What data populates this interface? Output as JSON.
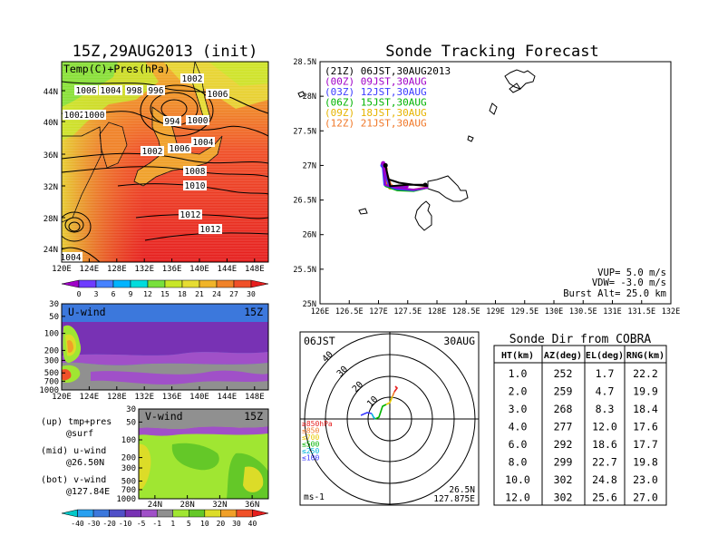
{
  "left_title": "15Z,29AUG2013 (init)",
  "right_title": "Sonde Tracking Forecast",
  "tp_panel": {
    "label": "Temp(C)+Pres(hPa)",
    "isobar_labels": [
      "1006",
      "1004",
      "998",
      "996",
      "1002",
      "1006",
      "1002",
      "1000",
      "994",
      "1000",
      "1004",
      "1002",
      "1006",
      "1008",
      "1010",
      "1012",
      "1012",
      "1004"
    ],
    "lon_ticks": [
      "120E",
      "124E",
      "128E",
      "132E",
      "136E",
      "140E",
      "144E",
      "148E"
    ],
    "lat_ticks": [
      "24N",
      "28N",
      "32N",
      "36N",
      "40N",
      "44N"
    ]
  },
  "temp_colorbar": {
    "labels": [
      "0",
      "3",
      "6",
      "9",
      "12",
      "15",
      "18",
      "21",
      "24",
      "27",
      "30"
    ],
    "colors": [
      "#a000c8",
      "#6e3cff",
      "#4682ff",
      "#00b4ff",
      "#00dcdc",
      "#78e03c",
      "#c8e628",
      "#e6dc32",
      "#f0b428",
      "#f08228",
      "#f05028",
      "#e61e1e"
    ]
  },
  "uwind_panel": {
    "label": "U-wind",
    "time": "15Z",
    "p_ticks": [
      "30",
      "50",
      "100",
      "200",
      "300",
      "500",
      "700",
      "1000"
    ],
    "lon_ticks": [
      "120E",
      "124E",
      "128E",
      "132E",
      "136E",
      "140E",
      "144E",
      "148E"
    ]
  },
  "vwind_panel": {
    "label": "V-wind",
    "time": "15Z",
    "p_ticks": [
      "30",
      "50",
      "100",
      "200",
      "300",
      "500",
      "700",
      "1000"
    ],
    "lat_ticks": [
      "24N",
      "28N",
      "32N",
      "36N"
    ]
  },
  "notes": [
    {
      "line1": "(up) tmp+pres",
      "line2": "@surf"
    },
    {
      "line1": "(mid) u-wind",
      "line2": "@26.50N"
    },
    {
      "line1": "(bot) v-wind",
      "line2": "@127.84E"
    }
  ],
  "wind_colorbar": {
    "labels": [
      "-40",
      "-30",
      "-20",
      "-10",
      "-5",
      "-1",
      "1",
      "5",
      "10",
      "20",
      "30",
      "40"
    ],
    "colors": [
      "#00c8c8",
      "#28a0f0",
      "#3c78dc",
      "#5050c8",
      "#7832b4",
      "#a050c8",
      "#909090",
      "#a0e632",
      "#64c828",
      "#dcdc28",
      "#f0a028",
      "#f05028",
      "#e61e1e"
    ]
  },
  "track_map": {
    "legend": [
      {
        "text": "(21Z) 06JST,30AUG2013",
        "color": "#000000"
      },
      {
        "text": "(00Z) 09JST,30AUG",
        "color": "#a000c8"
      },
      {
        "text": "(03Z) 12JST,30AUG",
        "color": "#3c3cff"
      },
      {
        "text": "(06Z) 15JST,30AUG",
        "color": "#00b400"
      },
      {
        "text": "(09Z) 18JST,30AUG",
        "color": "#e6b400"
      },
      {
        "text": "(12Z) 21JST,30AUG",
        "color": "#f07828"
      }
    ],
    "xticks": [
      "126E",
      "126.5E",
      "127E",
      "127.5E",
      "128E",
      "128.5E",
      "129E",
      "129.5E",
      "130E",
      "130.5E",
      "131E",
      "131.5E",
      "132E"
    ],
    "yticks": [
      "25N",
      "25.5N",
      "26N",
      "26.5N",
      "27N",
      "27.5N",
      "28N",
      "28.5N"
    ],
    "params": [
      "VUP= 5.0 m/s",
      "VDW= -3.0 m/s",
      "Burst Alt= 25.0 km"
    ]
  },
  "polar": {
    "label_left": "06JST",
    "label_right": "30AUG",
    "ring_labels": [
      "10",
      "20",
      "30",
      "40"
    ],
    "levels": [
      {
        "text": "≥850hPa",
        "color": "#e61e1e"
      },
      {
        "text": "≤850",
        "color": "#f07828"
      },
      {
        "text": "≤700",
        "color": "#e6c800"
      },
      {
        "text": "≤500",
        "color": "#00b400"
      },
      {
        "text": "≤250",
        "color": "#00b4dc"
      },
      {
        "text": "≤100",
        "color": "#3c3cff"
      }
    ],
    "unit": "ms-1",
    "lat": "26.5N",
    "lon": "127.875E"
  },
  "sonde_table": {
    "title": "Sonde Dir from COBRA",
    "headers": [
      "HT(km)",
      "AZ(deg)",
      "EL(deg)",
      "RNG(km)"
    ],
    "rows": [
      [
        "1.0",
        "252",
        "1.7",
        "22.2"
      ],
      [
        "2.0",
        "259",
        "4.7",
        "19.9"
      ],
      [
        "3.0",
        "268",
        "8.3",
        "18.4"
      ],
      [
        "4.0",
        "277",
        "12.0",
        "17.6"
      ],
      [
        "6.0",
        "292",
        "18.6",
        "17.7"
      ],
      [
        "8.0",
        "299",
        "22.7",
        "19.8"
      ],
      [
        "10.0",
        "302",
        "24.8",
        "23.0"
      ],
      [
        "12.0",
        "302",
        "25.6",
        "27.0"
      ]
    ]
  },
  "chart_data": [
    {
      "type": "heatmap",
      "title": "15Z,29AUG2013 (init)",
      "label": "Temp(C)+Pres(hPa)",
      "xlim": [
        120,
        150
      ],
      "ylim": [
        22,
        48
      ],
      "colorbar": [
        0,
        3,
        6,
        9,
        12,
        15,
        18,
        21,
        24,
        27,
        30
      ]
    },
    {
      "type": "heatmap",
      "label": "U-wind",
      "xlim": [
        120,
        150
      ],
      "y_pressure": [
        1000,
        30
      ],
      "colorbar": [
        -40,
        -30,
        -20,
        -10,
        -5,
        -1,
        1,
        5,
        10,
        20,
        30,
        40
      ]
    },
    {
      "type": "heatmap",
      "label": "V-wind",
      "xlim": [
        22,
        38
      ],
      "y_pressure": [
        1000,
        30
      ]
    },
    {
      "type": "line",
      "title": "Sonde Tracking Forecast",
      "xlim": [
        126,
        132
      ],
      "ylim": [
        25,
        28.5
      ],
      "series": [
        {
          "name": "(21Z) 06JST,30AUG2013",
          "x": [
            127.85,
            127.6,
            127.35,
            127.17,
            127.12,
            127.2,
            127.5,
            127.8
          ],
          "y": [
            26.7,
            26.72,
            26.75,
            26.8,
            27.0,
            26.7,
            26.72,
            26.72
          ]
        },
        {
          "name": "(00Z) 09JST,30AUG",
          "x": [
            127.85,
            127.6,
            127.3,
            127.12,
            127.08,
            127.2,
            127.48
          ],
          "y": [
            26.68,
            26.65,
            26.68,
            26.72,
            27.03,
            26.7,
            26.7
          ]
        },
        {
          "name": "(03Z) 12JST,30AUG",
          "x": [
            127.85,
            127.6,
            127.3,
            127.1,
            127.07,
            127.18,
            127.45
          ],
          "y": [
            26.68,
            26.64,
            26.66,
            26.72,
            27.0,
            26.7,
            26.7
          ]
        },
        {
          "name": "(06Z) 15JST,30AUG",
          "x": [
            127.85,
            127.6,
            127.32,
            127.12,
            127.09,
            127.2,
            127.45
          ],
          "y": [
            26.68,
            26.63,
            26.64,
            26.7,
            26.98,
            26.68,
            26.68
          ]
        },
        {
          "name": "(09Z) 18JST,30AUG",
          "x": [
            127.85,
            127.6,
            127.33,
            127.13,
            127.1,
            127.2
          ],
          "y": [
            26.68,
            26.64,
            26.65,
            26.7,
            26.96,
            26.68
          ]
        },
        {
          "name": "(12Z) 21JST,30AUG",
          "x": [
            127.85,
            127.6,
            127.35,
            127.15,
            127.12,
            127.22
          ],
          "y": [
            26.69,
            26.65,
            26.66,
            26.71,
            26.95,
            26.7
          ]
        }
      ]
    },
    {
      "type": "table",
      "title": "Sonde Dir from COBRA",
      "columns": [
        "HT(km)",
        "AZ(deg)",
        "EL(deg)",
        "RNG(km)"
      ],
      "rows": [
        [
          1.0,
          252,
          1.7,
          22.2
        ],
        [
          2.0,
          259,
          4.7,
          19.9
        ],
        [
          3.0,
          268,
          8.3,
          18.4
        ],
        [
          4.0,
          277,
          12.0,
          17.6
        ],
        [
          6.0,
          292,
          18.6,
          17.7
        ],
        [
          8.0,
          299,
          22.7,
          19.8
        ],
        [
          10.0,
          302,
          24.8,
          23.0
        ],
        [
          12.0,
          302,
          25.6,
          27.0
        ]
      ]
    }
  ]
}
